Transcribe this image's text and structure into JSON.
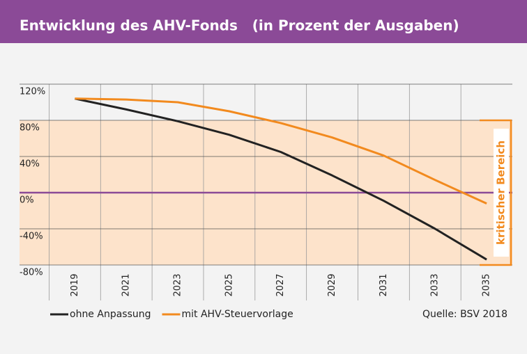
{
  "chart_data": {
    "type": "line",
    "title": "Entwicklung des AHV-Fonds   (in Prozent der Ausgaben)",
    "x": [
      2019,
      2021,
      2023,
      2025,
      2027,
      2029,
      2031,
      2033,
      2035
    ],
    "series": [
      {
        "name": "ohne Anpassung",
        "color": "#222222",
        "values": [
          104,
          92,
          79,
          64,
          45,
          19,
          -9,
          -40,
          -74
        ]
      },
      {
        "name": "mit AHV-Steuervorlage",
        "color": "#f28a1e",
        "values": [
          104,
          103,
          100,
          90,
          77,
          61,
          41,
          14,
          -12
        ]
      }
    ],
    "xlim": [
      2016.85,
      2036
    ],
    "xticks": [
      2019,
      2021,
      2023,
      2025,
      2027,
      2029,
      2031,
      2033,
      2035
    ],
    "minor_xticks": [
      2018,
      2020,
      2022,
      2024,
      2026,
      2028,
      2030,
      2032,
      2034
    ],
    "ylim": [
      -80,
      120
    ],
    "yticks": [
      {
        "value": 120,
        "label": "120%"
      },
      {
        "value": 80,
        "label": "80%"
      },
      {
        "value": 40,
        "label": "40%"
      },
      {
        "value": 0,
        "label": "0%"
      },
      {
        "value": -40,
        "label": "-40%"
      },
      {
        "value": -80,
        "label": "-80%"
      }
    ],
    "critical_range": [
      -80,
      80
    ],
    "critical_label": "kritischer Bereich",
    "threshold": 0,
    "threshold_color": "#8b4a97",
    "source": "Quelle: BSV 2018",
    "grid": true
  }
}
